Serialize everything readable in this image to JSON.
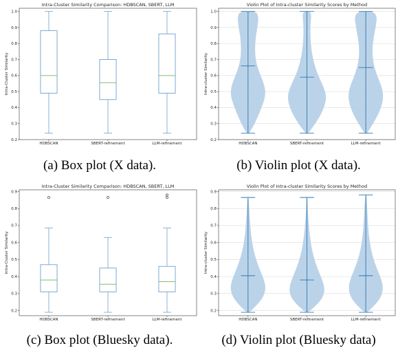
{
  "captions": {
    "a": "(a) Box plot (X data).",
    "b": "(b) Violin plot (X data).",
    "c": "(c) Box plot (Bluesky data).",
    "d": "(d) Violin plot (Bluesky data)"
  },
  "colors": {
    "box": "#6fa0cb",
    "median": "#7fbf6a",
    "violin_fill": "#b7d1e8",
    "violin_line": "#2f76ae",
    "grid": "#d9d9d9",
    "axis": "#333333"
  },
  "chart_data": [
    {
      "id": "a",
      "type": "box",
      "title": "Intra-Cluster Similarity Comparison: HDBSCAN, SBERT, LLM",
      "ylabel": "Intra-Cluster Similarity",
      "categories": [
        "HDBSCAN",
        "SBERT-refinement",
        "LLM-refinement"
      ],
      "ylim": [
        0.2,
        1.02
      ],
      "yticks": [
        "0.2",
        "0.3",
        "0.4",
        "0.5",
        "0.6",
        "0.7",
        "0.8",
        "0.9",
        "1.0"
      ],
      "grid": false,
      "boxes": [
        {
          "min": 0.24,
          "q1": 0.49,
          "median": 0.6,
          "q3": 0.88,
          "max": 1.0,
          "outliers": []
        },
        {
          "min": 0.24,
          "q1": 0.45,
          "median": 0.555,
          "q3": 0.7,
          "max": 1.0,
          "outliers": []
        },
        {
          "min": 0.24,
          "q1": 0.49,
          "median": 0.6,
          "q3": 0.86,
          "max": 1.0,
          "outliers": []
        }
      ]
    },
    {
      "id": "b",
      "type": "violin",
      "title": "Violin Plot of Intra-cluster Similarity Scores by Method",
      "ylabel": "Intra-cluster Similarity",
      "categories": [
        "HDBSCAN",
        "SBERT-refinement",
        "LLM-refinement"
      ],
      "ylim": [
        0.2,
        1.02
      ],
      "yticks": [
        "0.2",
        "0.3",
        "0.4",
        "0.5",
        "0.6",
        "0.7",
        "0.8",
        "0.9",
        "1.0"
      ],
      "grid": true,
      "violins": [
        {
          "min": 0.24,
          "max": 1.0,
          "mean": 0.66,
          "profile": [
            [
              0.24,
              0.05
            ],
            [
              0.3,
              0.28
            ],
            [
              0.4,
              0.55
            ],
            [
              0.48,
              0.72
            ],
            [
              0.55,
              0.65
            ],
            [
              0.62,
              0.45
            ],
            [
              0.7,
              0.3
            ],
            [
              0.78,
              0.28
            ],
            [
              0.85,
              0.32
            ],
            [
              0.92,
              0.4
            ],
            [
              0.97,
              0.42
            ],
            [
              1.0,
              0.32
            ]
          ]
        },
        {
          "min": 0.24,
          "max": 1.0,
          "mean": 0.59,
          "profile": [
            [
              0.24,
              0.05
            ],
            [
              0.3,
              0.35
            ],
            [
              0.38,
              0.65
            ],
            [
              0.46,
              0.8
            ],
            [
              0.53,
              0.68
            ],
            [
              0.6,
              0.45
            ],
            [
              0.68,
              0.28
            ],
            [
              0.76,
              0.18
            ],
            [
              0.84,
              0.14
            ],
            [
              0.92,
              0.14
            ],
            [
              0.97,
              0.18
            ],
            [
              1.0,
              0.14
            ]
          ]
        },
        {
          "min": 0.24,
          "max": 1.0,
          "mean": 0.65,
          "profile": [
            [
              0.24,
              0.05
            ],
            [
              0.3,
              0.3
            ],
            [
              0.38,
              0.58
            ],
            [
              0.46,
              0.72
            ],
            [
              0.53,
              0.65
            ],
            [
              0.6,
              0.45
            ],
            [
              0.68,
              0.3
            ],
            [
              0.76,
              0.26
            ],
            [
              0.84,
              0.32
            ],
            [
              0.92,
              0.42
            ],
            [
              0.97,
              0.45
            ],
            [
              1.0,
              0.3
            ]
          ]
        }
      ]
    },
    {
      "id": "c",
      "type": "box",
      "title": "Intra-Cluster Similarity Comparison: HDBSCAN, SBERT, LLM",
      "ylabel": "Intra-Cluster Similarity",
      "categories": [
        "HDBSCAN",
        "SBERT-refinement",
        "LLM-refinement"
      ],
      "ylim": [
        0.17,
        0.91
      ],
      "yticks": [
        "0.2",
        "0.3",
        "0.4",
        "0.5",
        "0.6",
        "0.7",
        "0.8",
        "0.9"
      ],
      "grid": false,
      "boxes": [
        {
          "min": 0.19,
          "q1": 0.31,
          "median": 0.38,
          "q3": 0.47,
          "max": 0.685,
          "outliers": [
            0.865
          ]
        },
        {
          "min": 0.19,
          "q1": 0.31,
          "median": 0.355,
          "q3": 0.45,
          "max": 0.63,
          "outliers": [
            0.865
          ]
        },
        {
          "min": 0.19,
          "q1": 0.31,
          "median": 0.37,
          "q3": 0.46,
          "max": 0.685,
          "outliers": [
            0.865,
            0.88
          ]
        }
      ]
    },
    {
      "id": "d",
      "type": "violin",
      "title": "Violin Plot of Intra-cluster Similarity Scores by Method",
      "ylabel": "Intra-cluster Similarity",
      "categories": [
        "HDBSCAN",
        "SBERT-refinement",
        "LLM-refinement"
      ],
      "ylim": [
        0.17,
        0.91
      ],
      "yticks": [
        "0.2",
        "0.3",
        "0.4",
        "0.5",
        "0.6",
        "0.7",
        "0.8",
        "0.9"
      ],
      "grid": true,
      "violins": [
        {
          "min": 0.19,
          "max": 0.865,
          "mean": 0.405,
          "profile": [
            [
              0.19,
              0.05
            ],
            [
              0.23,
              0.35
            ],
            [
              0.28,
              0.62
            ],
            [
              0.33,
              0.72
            ],
            [
              0.38,
              0.65
            ],
            [
              0.45,
              0.45
            ],
            [
              0.52,
              0.28
            ],
            [
              0.6,
              0.16
            ],
            [
              0.68,
              0.1
            ],
            [
              0.76,
              0.06
            ],
            [
              0.82,
              0.04
            ],
            [
              0.865,
              0.02
            ]
          ]
        },
        {
          "min": 0.19,
          "max": 0.865,
          "mean": 0.38,
          "profile": [
            [
              0.19,
              0.05
            ],
            [
              0.23,
              0.38
            ],
            [
              0.28,
              0.66
            ],
            [
              0.33,
              0.72
            ],
            [
              0.38,
              0.62
            ],
            [
              0.45,
              0.42
            ],
            [
              0.52,
              0.26
            ],
            [
              0.6,
              0.15
            ],
            [
              0.68,
              0.09
            ],
            [
              0.76,
              0.05
            ],
            [
              0.82,
              0.03
            ],
            [
              0.865,
              0.02
            ]
          ]
        },
        {
          "min": 0.19,
          "max": 0.88,
          "mean": 0.405,
          "profile": [
            [
              0.19,
              0.05
            ],
            [
              0.23,
              0.36
            ],
            [
              0.28,
              0.62
            ],
            [
              0.33,
              0.7
            ],
            [
              0.38,
              0.64
            ],
            [
              0.45,
              0.44
            ],
            [
              0.52,
              0.27
            ],
            [
              0.6,
              0.16
            ],
            [
              0.68,
              0.1
            ],
            [
              0.76,
              0.07
            ],
            [
              0.82,
              0.05
            ],
            [
              0.88,
              0.02
            ]
          ]
        }
      ]
    }
  ]
}
